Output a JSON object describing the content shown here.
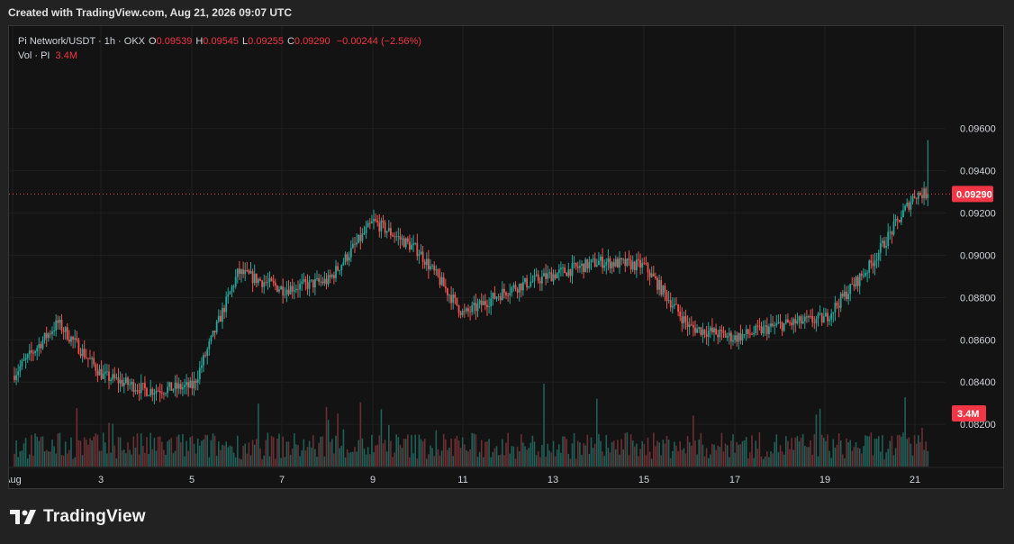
{
  "header": {
    "note": "Created with TradingView.com, Aug 21, 2026 09:07 UTC"
  },
  "legend": {
    "symbol": "Pi Network/USDT · 1h · OKX",
    "open_label": "O",
    "open": "0.09539",
    "high_label": "H",
    "high": "0.09545",
    "low_label": "L",
    "low": "0.09255",
    "close_label": "C",
    "close": "0.09290",
    "change": "−0.00244 (−2.56%)",
    "vol_label": "Vol · PI",
    "vol_value": "3.4M"
  },
  "price_tag": "0.09290",
  "volume_tag": "3.4M",
  "footer": {
    "brand": "TradingView",
    "logo_icon": "tradingview-logo-icon"
  },
  "colors": {
    "up": "#26a69a",
    "down": "#ef5350",
    "background": "#131313",
    "tag": "#f23645"
  },
  "chart_data": {
    "type": "candlestick",
    "interval": "1h",
    "y_axis": {
      "ylim": [
        0.0806,
        0.0985
      ],
      "ticks": [
        "0.09600",
        "0.09400",
        "0.09200",
        "0.09000",
        "0.08800",
        "0.08600",
        "0.08400",
        "0.08200"
      ],
      "side": "right"
    },
    "x_axis": {
      "ticks": [
        "Aug",
        "3",
        "5",
        "7",
        "9",
        "11",
        "13",
        "15",
        "17",
        "19",
        "21"
      ]
    },
    "grid": true,
    "last_price": 0.0929,
    "daily_path": [
      {
        "day": "Aug 1",
        "price": 0.0843
      },
      {
        "day": "Aug 2",
        "price": 0.0868
      },
      {
        "day": "Aug 3",
        "price": 0.0843
      },
      {
        "day": "Aug 4",
        "price": 0.0836
      },
      {
        "day": "Aug 5",
        "price": 0.0838
      },
      {
        "day": "Aug 6",
        "price": 0.0892
      },
      {
        "day": "Aug 7",
        "price": 0.0884
      },
      {
        "day": "Aug 8",
        "price": 0.0888
      },
      {
        "day": "Aug 9",
        "price": 0.0916
      },
      {
        "day": "Aug 10",
        "price": 0.0902
      },
      {
        "day": "Aug 11",
        "price": 0.0872
      },
      {
        "day": "Aug 12",
        "price": 0.0884
      },
      {
        "day": "Aug 13",
        "price": 0.0891
      },
      {
        "day": "Aug 14",
        "price": 0.0897
      },
      {
        "day": "Aug 15",
        "price": 0.0895
      },
      {
        "day": "Aug 16",
        "price": 0.0866
      },
      {
        "day": "Aug 17",
        "price": 0.0861
      },
      {
        "day": "Aug 18",
        "price": 0.0867
      },
      {
        "day": "Aug 19",
        "price": 0.087
      },
      {
        "day": "Aug 20",
        "price": 0.0895
      },
      {
        "day": "Aug 21",
        "price": 0.0929
      }
    ]
  }
}
